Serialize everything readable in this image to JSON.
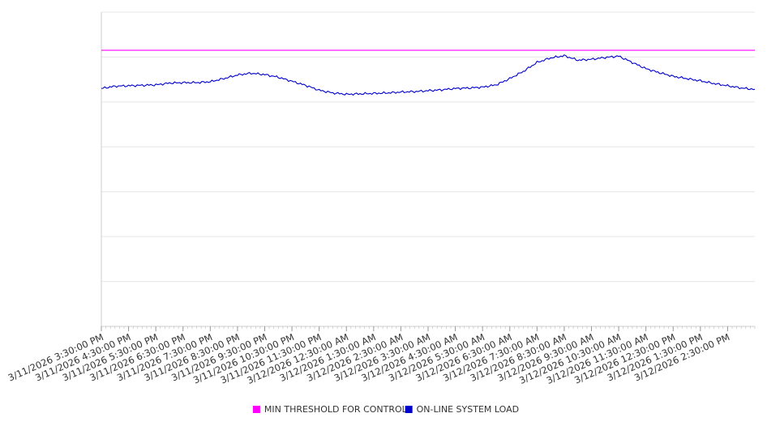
{
  "chart_data": {
    "type": "line",
    "title": "",
    "xlabel": "",
    "ylabel": "",
    "x_tick_labels": [
      "3/11/2026 3:30:00 PM",
      "3/11/2026 4:30:00 PM",
      "3/11/2026 5:30:00 PM",
      "3/11/2026 6:30:00 PM",
      "3/11/2026 7:30:00 PM",
      "3/11/2026 8:30:00 PM",
      "3/11/2026 9:30:00 PM",
      "3/11/2026 10:30:00 PM",
      "3/11/2026 11:30:00 PM",
      "3/12/2026 12:30:00 AM",
      "3/12/2026 1:30:00 AM",
      "3/12/2026 2:30:00 AM",
      "3/12/2026 3:30:00 AM",
      "3/12/2026 4:30:00 AM",
      "3/12/2026 5:30:00 AM",
      "3/12/2026 6:30:00 AM",
      "3/12/2026 7:30:00 AM",
      "3/12/2026 8:30:00 AM",
      "3/12/2026 9:30:00 AM",
      "3/12/2026 10:30:00 AM",
      "3/12/2026 11:30:00 AM",
      "3/12/2026 12:30:00 PM",
      "3/12/2026 1:30:00 PM",
      "3/12/2026 2:30:00 PM"
    ],
    "y_gridlines": 7,
    "grid": true,
    "legend_position": "bottom",
    "series": [
      {
        "name": "MIN THRESHOLD FOR CONTROL",
        "color": "#ff00ff",
        "x": [
          "3/11/2026 3:30:00 PM",
          "3/12/2026 3:30:00 PM"
        ],
        "values": [
          6.15,
          6.15
        ]
      },
      {
        "name": "ON-LINE SYSTEM LOAD",
        "color": "#0000cc",
        "x": [
          "3/11/2026 3:30:00 PM",
          "3/11/2026 4:00:00 PM",
          "3/11/2026 4:30:00 PM",
          "3/11/2026 5:00:00 PM",
          "3/11/2026 5:30:00 PM",
          "3/11/2026 6:00:00 PM",
          "3/11/2026 6:30:00 PM",
          "3/11/2026 7:00:00 PM",
          "3/11/2026 7:30:00 PM",
          "3/11/2026 8:00:00 PM",
          "3/11/2026 8:30:00 PM",
          "3/11/2026 9:00:00 PM",
          "3/11/2026 9:30:00 PM",
          "3/11/2026 10:00:00 PM",
          "3/11/2026 10:30:00 PM",
          "3/11/2026 11:00:00 PM",
          "3/11/2026 11:30:00 PM",
          "3/12/2026 12:00:00 AM",
          "3/12/2026 12:30:00 AM",
          "3/12/2026 1:00:00 AM",
          "3/12/2026 1:30:00 AM",
          "3/12/2026 2:00:00 AM",
          "3/12/2026 2:30:00 AM",
          "3/12/2026 3:00:00 AM",
          "3/12/2026 3:30:00 AM",
          "3/12/2026 4:00:00 AM",
          "3/12/2026 4:30:00 AM",
          "3/12/2026 5:00:00 AM",
          "3/12/2026 5:30:00 AM",
          "3/12/2026 6:00:00 AM",
          "3/12/2026 6:30:00 AM",
          "3/12/2026 7:00:00 AM",
          "3/12/2026 7:30:00 AM",
          "3/12/2026 8:00:00 AM",
          "3/12/2026 8:30:00 AM",
          "3/12/2026 9:00:00 AM",
          "3/12/2026 9:30:00 AM",
          "3/12/2026 10:00:00 AM",
          "3/12/2026 10:30:00 AM",
          "3/12/2026 11:00:00 AM",
          "3/12/2026 11:30:00 AM",
          "3/12/2026 12:00:00 PM",
          "3/12/2026 12:30:00 PM",
          "3/12/2026 1:00:00 PM",
          "3/12/2026 1:30:00 PM",
          "3/12/2026 2:00:00 PM",
          "3/12/2026 2:30:00 PM",
          "3/12/2026 3:00:00 PM",
          "3/12/2026 3:30:00 PM"
        ],
        "values": [
          5.3,
          5.35,
          5.36,
          5.37,
          5.38,
          5.42,
          5.43,
          5.43,
          5.45,
          5.52,
          5.6,
          5.64,
          5.61,
          5.55,
          5.46,
          5.37,
          5.26,
          5.2,
          5.17,
          5.18,
          5.19,
          5.2,
          5.22,
          5.23,
          5.25,
          5.27,
          5.3,
          5.31,
          5.33,
          5.38,
          5.52,
          5.68,
          5.88,
          5.98,
          6.03,
          5.93,
          5.95,
          5.99,
          6.02,
          5.88,
          5.74,
          5.65,
          5.57,
          5.52,
          5.47,
          5.41,
          5.36,
          5.31,
          5.28
        ]
      }
    ]
  }
}
